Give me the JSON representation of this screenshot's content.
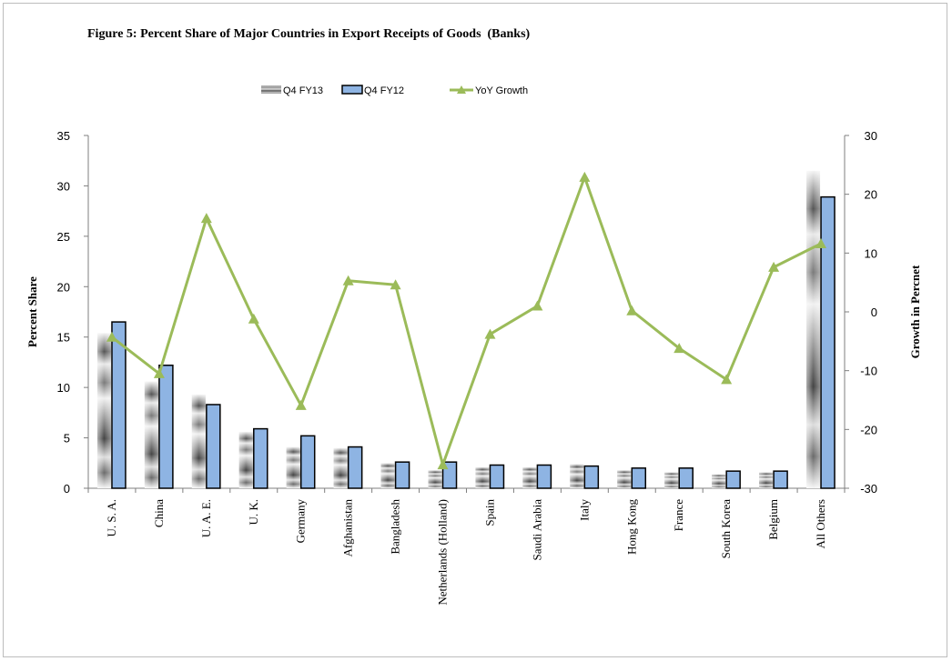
{
  "figure": {
    "title": "Figure 5: Percent Share of Major Countries in Export Receipts of Goods  (Banks)"
  },
  "chart_data": {
    "type": "bar",
    "title": "Figure 5: Percent Share of Major Countries in Export Receipts of Goods  (Banks)",
    "categories": [
      "U. S. A.",
      "China",
      "U. A. E.",
      "U. K.",
      "Germany",
      "Afghanistan",
      "Bangladesh",
      "Netherlands (Holland)",
      "Spain",
      "Saudi Arabia",
      "Italy",
      "Hong Kong",
      "France",
      "South Korea",
      "Belgium",
      "All Others"
    ],
    "ylabel": "Percent Share",
    "y2label": "Growth in Percnet",
    "ylim": [
      0,
      35
    ],
    "yticks": [
      0,
      5,
      10,
      15,
      20,
      25,
      30,
      35
    ],
    "y2lim": [
      -30,
      30
    ],
    "y2ticks": [
      -30,
      -20,
      -10,
      0,
      10,
      20,
      30
    ],
    "grid": false,
    "legend_position": "top",
    "series": [
      {
        "name": "Q4 FY13",
        "type": "bar",
        "axis": "left",
        "color": "#a6a6a6",
        "pattern": "gradient-stripes",
        "values": [
          15.4,
          10.6,
          9.3,
          5.6,
          4.1,
          4.0,
          2.5,
          1.8,
          2.1,
          2.1,
          2.4,
          1.8,
          1.6,
          1.4,
          1.6,
          31.5
        ]
      },
      {
        "name": "Q4 FY12",
        "type": "bar",
        "axis": "left",
        "color": "#8eb4e3",
        "values": [
          16.5,
          12.2,
          8.3,
          5.9,
          5.2,
          4.1,
          2.6,
          2.6,
          2.3,
          2.3,
          2.2,
          2.0,
          2.0,
          1.7,
          1.7,
          28.9
        ]
      },
      {
        "name": "YoY Growth",
        "type": "line",
        "axis": "right",
        "color": "#9bbb59",
        "values": [
          -4.3,
          -10.5,
          15.9,
          -1.2,
          -15.9,
          5.3,
          4.6,
          -26.0,
          -3.8,
          1.0,
          22.9,
          0.2,
          -6.2,
          -11.5,
          7.6,
          11.6
        ]
      }
    ]
  }
}
